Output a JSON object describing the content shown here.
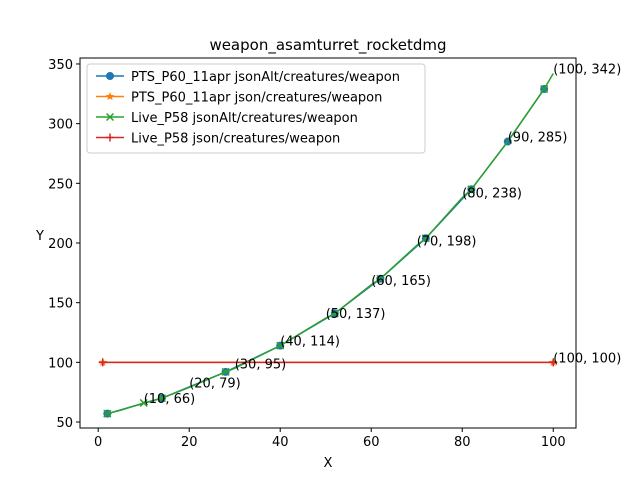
{
  "chart_data": {
    "type": "line",
    "title": "weapon_asamturret_rocketdmg",
    "xlabel": "X",
    "ylabel": "Y",
    "xlim": [
      -4,
      105
    ],
    "ylim": [
      45,
      355
    ],
    "xticks": [
      0,
      20,
      40,
      60,
      80,
      100
    ],
    "yticks": [
      50,
      100,
      150,
      200,
      250,
      300,
      350
    ],
    "legend_position": "top-left",
    "grid": false,
    "series": [
      {
        "name": "PTS_P60_11apr jsonAlt/creatures/weapon",
        "color": "#1f77b4",
        "marker": "circle",
        "x": [
          2,
          14,
          28,
          40,
          52,
          62,
          72,
          82,
          90,
          98
        ],
        "y": [
          57,
          70,
          92,
          114,
          141,
          170,
          204,
          245,
          285,
          329
        ]
      },
      {
        "name": "PTS_P60_11apr json/creatures/weapon",
        "color": "#ff7f0e",
        "marker": "star",
        "x": [
          1,
          100
        ],
        "y": [
          100,
          100
        ]
      },
      {
        "name": "Live_P58 jsonAlt/creatures/weapon",
        "color": "#2ca02c",
        "marker": "x",
        "x": [
          2,
          5,
          10,
          14,
          20,
          28,
          30,
          40,
          50,
          52,
          60,
          62,
          70,
          72,
          80,
          82,
          90,
          98,
          100
        ],
        "y": [
          57,
          60,
          66,
          70,
          79,
          92,
          95,
          114,
          137,
          141,
          165,
          170,
          198,
          204,
          238,
          245,
          285,
          329,
          342
        ]
      },
      {
        "name": "Live_P58 json/creatures/weapon",
        "color": "#d62728",
        "marker": "plus",
        "x": [
          1,
          100
        ],
        "y": [
          100,
          100
        ]
      }
    ],
    "annotations": [
      {
        "text": "(10, 66)",
        "x": 10,
        "y": 66
      },
      {
        "text": "(20, 79)",
        "x": 20,
        "y": 79
      },
      {
        "text": "(30, 95)",
        "x": 30,
        "y": 95
      },
      {
        "text": "(40, 114)",
        "x": 40,
        "y": 114
      },
      {
        "text": "(50, 137)",
        "x": 50,
        "y": 137
      },
      {
        "text": "(60, 165)",
        "x": 60,
        "y": 165
      },
      {
        "text": "(70, 198)",
        "x": 70,
        "y": 198
      },
      {
        "text": "(80, 238)",
        "x": 80,
        "y": 238
      },
      {
        "text": "(90, 285)",
        "x": 90,
        "y": 285
      },
      {
        "text": "(100, 342)",
        "x": 100,
        "y": 342
      },
      {
        "text": "(100, 100)",
        "x": 100,
        "y": 100
      }
    ]
  }
}
